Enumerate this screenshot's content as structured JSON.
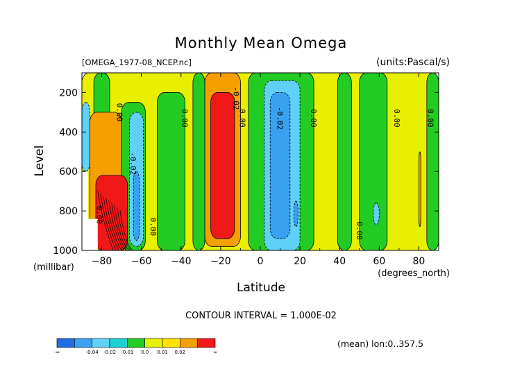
{
  "chart_data": {
    "type": "heatmap",
    "title": "Monthly Mean Omega",
    "subtitle_left": "[OMEGA_1977-08_NCEP.nc]",
    "subtitle_right": "(units:Pascal/s)",
    "xlabel": "Latitude",
    "xunit": "(degrees_north)",
    "ylabel": "Level",
    "yunit": "(millibar)",
    "xlim": [
      -90,
      90
    ],
    "ylim": [
      1000,
      100
    ],
    "x_ticks": [
      -80,
      -60,
      -40,
      -20,
      0,
      20,
      40,
      60,
      80
    ],
    "y_ticks": [
      200,
      400,
      600,
      800,
      1000
    ],
    "contour_interval_text": "CONTOUR INTERVAL = 1.000E-02",
    "contour_labels": [
      "0.00",
      "-0.02",
      "0.00",
      "0.00",
      "-0.02",
      "0.00",
      "-0.02",
      "0.00",
      "0.00",
      "0.00",
      "0.00",
      "0.00"
    ],
    "colorbar": {
      "colors": [
        "#1f6fe0",
        "#3aa0f0",
        "#5fd0f8",
        "#20d0d0",
        "#22cc22",
        "#e8f000",
        "#ffe000",
        "#f5a000",
        "#f01818"
      ],
      "labels": [
        "-∞",
        "-0.04",
        "-0.02",
        "-0.01",
        "0.0",
        "0.01",
        "0.02",
        "∞"
      ]
    },
    "note": "(mean) lon:0..357.5",
    "regions": [
      {
        "level": "yellow",
        "x0": -90,
        "x1": 90,
        "y0": 100,
        "y1": 1000
      },
      {
        "level": "green",
        "x0": -84,
        "x1": -76,
        "y0": 100,
        "y1": 600
      },
      {
        "level": "cyan",
        "x0": -90,
        "x1": -86,
        "y0": 250,
        "y1": 600
      },
      {
        "level": "green",
        "x0": -70,
        "x1": -58,
        "y0": 250,
        "y1": 1000
      },
      {
        "level": "cyan",
        "x0": -66,
        "x1": -59,
        "y0": 300,
        "y1": 980
      },
      {
        "level": "blue",
        "x0": -64,
        "x1": -61,
        "y0": 600,
        "y1": 950
      },
      {
        "level": "green",
        "x0": -52,
        "x1": -38,
        "y0": 200,
        "y1": 1000
      },
      {
        "level": "green",
        "x0": -34,
        "x1": -28,
        "y0": 100,
        "y1": 1000
      },
      {
        "level": "green",
        "x0": -6,
        "x1": 27,
        "y0": 100,
        "y1": 1000
      },
      {
        "level": "cyan",
        "x0": 2,
        "x1": 20,
        "y0": 140,
        "y1": 1000
      },
      {
        "level": "blue",
        "x0": 5,
        "x1": 15,
        "y0": 200,
        "y1": 940
      },
      {
        "level": "blue",
        "x0": 17,
        "x1": 19,
        "y0": 750,
        "y1": 880
      },
      {
        "level": "green",
        "x0": 39,
        "x1": 46,
        "y0": 100,
        "y1": 1000
      },
      {
        "level": "green",
        "x0": 50,
        "x1": 64,
        "y0": 100,
        "y1": 1000
      },
      {
        "level": "cyan",
        "x0": 57,
        "x1": 60,
        "y0": 760,
        "y1": 870
      },
      {
        "level": "green",
        "x0": 84,
        "x1": 90,
        "y0": 100,
        "y1": 1000
      },
      {
        "level": "orange",
        "x0": -28,
        "x1": -10,
        "y0": 100,
        "y1": 980
      },
      {
        "level": "red",
        "x0": -25,
        "x1": -13,
        "y0": 200,
        "y1": 940
      },
      {
        "level": "orange",
        "x0": -86,
        "x1": -70,
        "y0": 300,
        "y1": 1000
      },
      {
        "level": "red",
        "x0": -83,
        "x1": -67,
        "y0": 620,
        "y1": 1000
      },
      {
        "level": "orange",
        "x0": 80,
        "x1": 81,
        "y0": 500,
        "y1": 880
      }
    ],
    "missing_region": {
      "x0": -90,
      "x1": -82,
      "y0": 600,
      "y1": 1000
    }
  }
}
